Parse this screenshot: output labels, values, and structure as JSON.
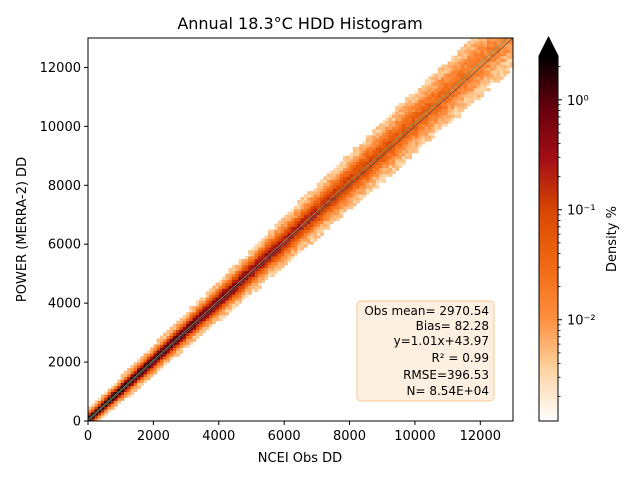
{
  "chart_data": {
    "type": "heatmap",
    "title": "Annual 18.3°C HDD Histogram",
    "xlabel": "NCEI Obs DD",
    "ylabel": "POWER (MERRA-2) DD",
    "xlim": [
      0,
      13000
    ],
    "ylim": [
      0,
      13000
    ],
    "x_ticks": [
      0,
      2000,
      4000,
      6000,
      8000,
      10000,
      12000
    ],
    "y_ticks": [
      0,
      2000,
      4000,
      6000,
      8000,
      10000,
      12000
    ],
    "x_tick_labels": [
      "0",
      "2000",
      "4000",
      "6000",
      "8000",
      "10000",
      "12000"
    ],
    "y_tick_labels": [
      "0",
      "2000",
      "4000",
      "6000",
      "8000",
      "10000",
      "12000"
    ],
    "grid": false,
    "fit_line": {
      "slope": 1.01,
      "intercept": 43.97
    },
    "one_to_one_line": true,
    "stats": [
      "Obs mean= 2970.54",
      "Bias= 82.28",
      "y=1.01x+43.97",
      "R² = 0.99",
      "RMSE=396.53",
      "N= 8.54E+04"
    ],
    "stats_position": "bottom-right",
    "colorbar": {
      "label": "Density %",
      "scale": "log",
      "range": [
        0.0012,
        2.5
      ],
      "ticks": [
        0.01,
        0.1,
        1
      ],
      "tick_labels": [
        "10⁻²",
        "10⁻¹",
        "10⁰"
      ],
      "colors": [
        "#ffffff",
        "#fdd3a0",
        "#fd8d3c",
        "#f16913",
        "#d94801",
        "#a50f15",
        "#67000d",
        "#000000"
      ],
      "extend": "max"
    }
  }
}
